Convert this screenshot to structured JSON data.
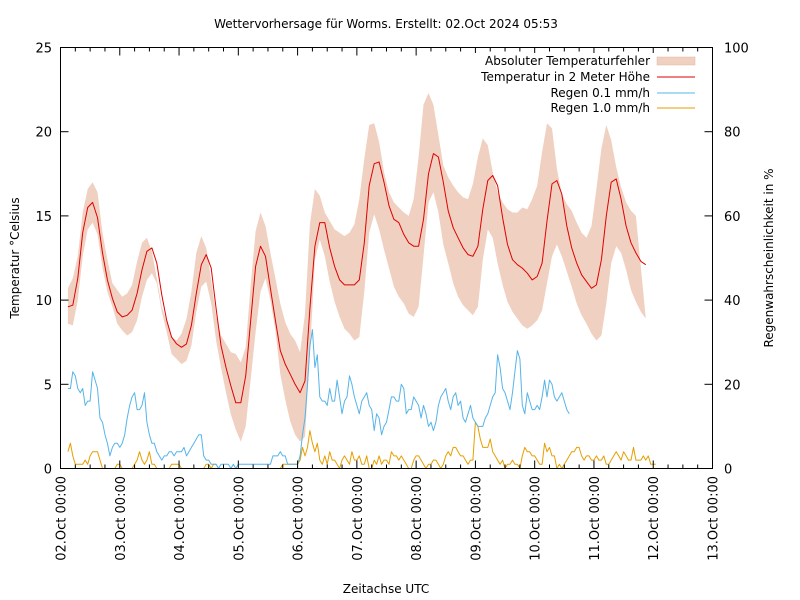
{
  "chart_data": {
    "type": "line",
    "title": "Wettervorhersage für Worms. Erstellt: 02.Oct 2024 05:53",
    "xlabel": "Zeitachse UTC",
    "ylabel": "Temperatur °Celsius",
    "y2label": "Regenwahrscheinlichkeit in %",
    "x_tick_labels": [
      "02.Oct 00:00",
      "03.Oct 00:00",
      "04.Oct 00:00",
      "05.Oct 00:00",
      "06.Oct 00:00",
      "07.Oct 00:00",
      "08.Oct 00:00",
      "09.Oct 00:00",
      "10.Oct 00:00",
      "11.Oct 00:00",
      "12.Oct 00:00",
      "13.Oct 00:00"
    ],
    "xlim_hours": [
      0,
      264
    ],
    "x_minor_tick_every_hours": 6,
    "ylim": [
      0,
      25
    ],
    "y_ticks": [
      0,
      5,
      10,
      15,
      20,
      25
    ],
    "y2lim": [
      0,
      100
    ],
    "y2_ticks": [
      0,
      20,
      40,
      60,
      80,
      100
    ],
    "grid": false,
    "legend_position": "top-right",
    "x_hours_start": 3,
    "x_hours_step": 3,
    "series": [
      {
        "name": "Absoluter Temperaturfehler",
        "kind": "band",
        "axis": "y1",
        "color": "#f0d0c0",
        "lower": [
          8.6,
          8.5,
          10.0,
          12.6,
          14.2,
          14.6,
          13.9,
          11.9,
          10.5,
          9.6,
          8.6,
          8.2,
          7.9,
          8.1,
          8.8,
          10.2,
          11.2,
          11.6,
          11.0,
          9.3,
          8.1,
          6.8,
          6.5,
          6.2,
          6.4,
          7.3,
          9.3,
          10.8,
          11.1,
          9.8,
          7.6,
          6.0,
          4.5,
          3.2,
          2.3,
          1.6,
          2.5,
          5.3,
          8.1,
          10.5,
          11.3,
          10.0,
          8.2,
          5.6,
          4.1,
          2.8,
          2.0,
          1.6,
          1.9,
          6.8,
          12.4,
          13.6,
          12.6,
          11.1,
          9.9,
          9.0,
          8.3,
          8.0,
          7.6,
          7.8,
          10.5,
          14.0,
          15.1,
          14.2,
          13.0,
          11.9,
          10.8,
          10.2,
          9.8,
          9.2,
          9.0,
          9.6,
          12.6,
          15.8,
          16.4,
          15.2,
          13.3,
          12.2,
          11.0,
          10.2,
          9.7,
          9.4,
          9.1,
          9.6,
          12.4,
          14.2,
          13.7,
          12.2,
          10.9,
          9.9,
          9.3,
          8.9,
          8.5,
          8.3,
          8.5,
          8.8,
          9.4,
          11.0,
          12.6,
          13.3,
          12.6,
          11.7,
          10.8,
          9.8,
          9.1,
          8.6,
          8.0,
          7.6,
          7.9,
          9.8,
          12.2,
          13.2,
          12.8,
          11.8,
          10.6,
          9.9,
          9.3,
          8.9
        ],
        "upper": [
          10.7,
          11.3,
          12.6,
          15.2,
          16.6,
          17.0,
          16.4,
          14.0,
          12.4,
          11.0,
          10.6,
          10.2,
          10.4,
          10.9,
          12.3,
          13.4,
          13.7,
          12.9,
          11.3,
          9.6,
          8.7,
          7.8,
          7.6,
          8.0,
          8.9,
          10.5,
          12.8,
          13.8,
          13.1,
          11.2,
          9.1,
          7.9,
          7.4,
          6.9,
          6.8,
          6.3,
          7.2,
          10.9,
          14.1,
          15.2,
          14.4,
          12.8,
          11.3,
          9.8,
          8.7,
          8.0,
          7.6,
          6.9,
          9.2,
          14.5,
          16.6,
          16.2,
          15.2,
          14.7,
          14.2,
          14.0,
          13.8,
          14.0,
          14.5,
          16.0,
          18.4,
          20.4,
          20.5,
          19.4,
          17.6,
          16.4,
          15.8,
          15.5,
          15.2,
          15.0,
          16.0,
          18.5,
          21.6,
          22.3,
          21.6,
          19.8,
          18.0,
          17.3,
          16.8,
          16.4,
          16.1,
          16.0,
          16.9,
          18.5,
          19.6,
          19.2,
          17.6,
          16.4,
          15.8,
          15.4,
          15.2,
          15.2,
          15.5,
          15.4,
          16.0,
          16.8,
          18.8,
          20.5,
          20.2,
          17.8,
          16.3,
          15.7,
          15.3,
          14.6,
          14.0,
          13.7,
          14.4,
          16.6,
          19.0,
          20.4,
          19.5,
          17.9,
          16.7,
          15.8,
          15.3,
          15.0
        ],
        "values_start_hours": 3,
        "values_step_hours": 2
      },
      {
        "name": "Temperatur in 2 Meter Höhe",
        "kind": "line",
        "axis": "y1",
        "color": "#e00000",
        "values": [
          9.6,
          9.7,
          11.3,
          14.0,
          15.5,
          15.8,
          14.9,
          12.8,
          11.2,
          10.1,
          9.3,
          9.0,
          9.1,
          9.4,
          10.4,
          11.8,
          12.9,
          13.1,
          12.2,
          10.3,
          8.8,
          7.8,
          7.4,
          7.2,
          7.4,
          8.5,
          10.4,
          12.1,
          12.7,
          11.9,
          9.5,
          7.3,
          6.0,
          4.9,
          3.9,
          3.9,
          5.5,
          8.8,
          12.0,
          13.2,
          12.6,
          10.7,
          8.8,
          7.0,
          6.2,
          5.6,
          5.0,
          4.5,
          5.2,
          9.5,
          13.2,
          14.6,
          14.6,
          13.1,
          12.0,
          11.2,
          10.9,
          10.9,
          10.9,
          11.2,
          13.4,
          16.8,
          18.1,
          18.2,
          17.0,
          15.6,
          14.8,
          14.6,
          13.9,
          13.4,
          13.2,
          13.2,
          14.8,
          17.5,
          18.7,
          18.5,
          17.0,
          15.3,
          14.3,
          13.7,
          13.1,
          12.7,
          12.6,
          13.2,
          15.4,
          17.1,
          17.4,
          16.8,
          14.9,
          13.3,
          12.4,
          12.1,
          11.9,
          11.6,
          11.2,
          11.4,
          12.2,
          14.7,
          16.9,
          17.1,
          16.3,
          14.4,
          13.1,
          12.2,
          11.5,
          11.1,
          10.7,
          10.9,
          12.4,
          15.0,
          17.0,
          17.2,
          16.0,
          14.4,
          13.4,
          12.8,
          12.3,
          12.1
        ],
        "values_start_hours": 3,
        "values_step_hours": 2
      },
      {
        "name": "Regen 0.1 mm/h",
        "kind": "line",
        "axis": "y2",
        "color": "#56b4e9",
        "values": [
          19,
          19,
          23,
          22,
          19,
          18,
          19,
          15,
          16,
          16,
          23,
          21,
          19,
          12,
          11,
          8,
          6,
          3,
          5,
          6,
          6,
          5,
          6,
          8,
          12,
          15,
          17,
          18,
          14,
          14,
          15,
          18,
          11,
          8,
          6,
          6,
          4,
          3,
          2,
          3,
          3,
          4,
          4,
          3,
          4,
          4,
          4,
          5,
          3,
          4,
          5,
          6,
          7,
          8,
          8,
          3,
          2,
          2,
          1,
          1,
          1,
          0,
          1,
          1,
          1,
          1,
          0,
          1,
          0,
          1,
          1,
          1,
          1,
          1,
          1,
          1,
          1,
          1,
          1,
          1,
          1,
          1,
          1,
          3,
          3,
          3,
          4,
          3,
          3,
          1,
          1,
          1,
          1,
          1,
          3,
          8,
          12,
          20,
          29,
          33,
          24,
          27,
          17,
          16,
          16,
          15,
          19,
          16,
          16,
          21,
          17,
          13,
          16,
          17,
          22,
          20,
          17,
          15,
          13,
          16,
          17,
          18,
          15,
          14,
          9,
          13,
          12,
          8,
          10,
          11,
          14,
          17,
          17,
          16,
          16,
          20,
          19,
          13,
          14,
          14,
          17,
          16,
          15,
          12,
          15,
          13,
          10,
          11,
          9,
          11,
          15,
          17,
          18,
          19,
          16,
          14,
          17,
          18,
          15,
          16,
          12,
          11,
          13,
          15,
          12,
          11,
          10,
          10,
          10,
          12,
          13,
          15,
          17,
          18,
          27,
          24,
          19,
          18,
          16,
          14,
          18,
          23,
          28,
          26,
          15,
          13,
          18,
          16,
          14,
          14,
          15,
          14,
          17,
          21,
          17,
          21,
          20,
          17,
          16,
          17,
          18,
          16,
          14,
          13
        ],
        "values_start_hours": 3,
        "values_step_hours": 1
      },
      {
        "name": "Regen 1.0 mm/h",
        "kind": "line",
        "axis": "y2",
        "color": "#e69f00",
        "values": [
          4,
          6,
          3,
          1,
          1,
          1,
          1,
          2,
          1,
          3,
          4,
          4,
          4,
          2,
          0,
          0,
          0,
          0,
          0,
          0,
          1,
          1,
          0,
          0,
          0,
          0,
          0,
          1,
          2,
          4,
          2,
          1,
          2,
          4,
          1,
          1,
          0,
          0,
          0,
          0,
          0,
          0,
          1,
          1,
          1,
          1,
          0,
          0,
          0,
          0,
          0,
          0,
          0,
          0,
          0,
          0,
          1,
          1,
          0,
          1,
          1,
          0,
          0,
          0,
          0,
          0,
          0,
          0,
          0,
          0,
          0,
          0,
          0,
          0,
          0,
          0,
          0,
          0,
          0,
          0,
          0,
          0,
          0,
          0,
          0,
          0,
          0,
          1,
          1,
          1,
          1,
          1,
          1,
          1,
          2,
          5,
          3,
          5,
          9,
          6,
          4,
          6,
          2,
          1,
          3,
          1,
          4,
          2,
          2,
          1,
          0,
          2,
          3,
          2,
          1,
          4,
          2,
          2,
          3,
          1,
          1,
          3,
          0,
          0,
          2,
          1,
          3,
          1,
          2,
          2,
          1,
          4,
          3,
          3,
          2,
          3,
          2,
          1,
          0,
          0,
          2,
          3,
          3,
          2,
          1,
          0,
          1,
          1,
          2,
          2,
          1,
          0,
          1,
          3,
          4,
          3,
          5,
          5,
          4,
          3,
          3,
          2,
          1,
          2,
          2,
          11,
          10,
          7,
          5,
          5,
          5,
          7,
          4,
          3,
          2,
          1,
          2,
          0,
          1,
          1,
          2,
          1,
          1,
          0,
          3,
          5,
          4,
          4,
          3,
          3,
          2,
          1,
          1,
          6,
          4,
          5,
          3,
          3,
          0,
          1,
          0,
          1,
          2,
          3,
          4,
          4,
          5,
          5,
          3,
          2,
          3,
          3,
          2,
          2,
          3,
          2,
          2,
          3,
          1,
          1,
          2,
          3,
          4,
          3,
          2,
          4,
          3,
          2,
          2,
          5,
          2,
          2,
          2,
          3,
          2,
          3,
          1,
          1,
          1
        ],
        "values_start_hours": 3,
        "values_step_hours": 1
      }
    ]
  }
}
